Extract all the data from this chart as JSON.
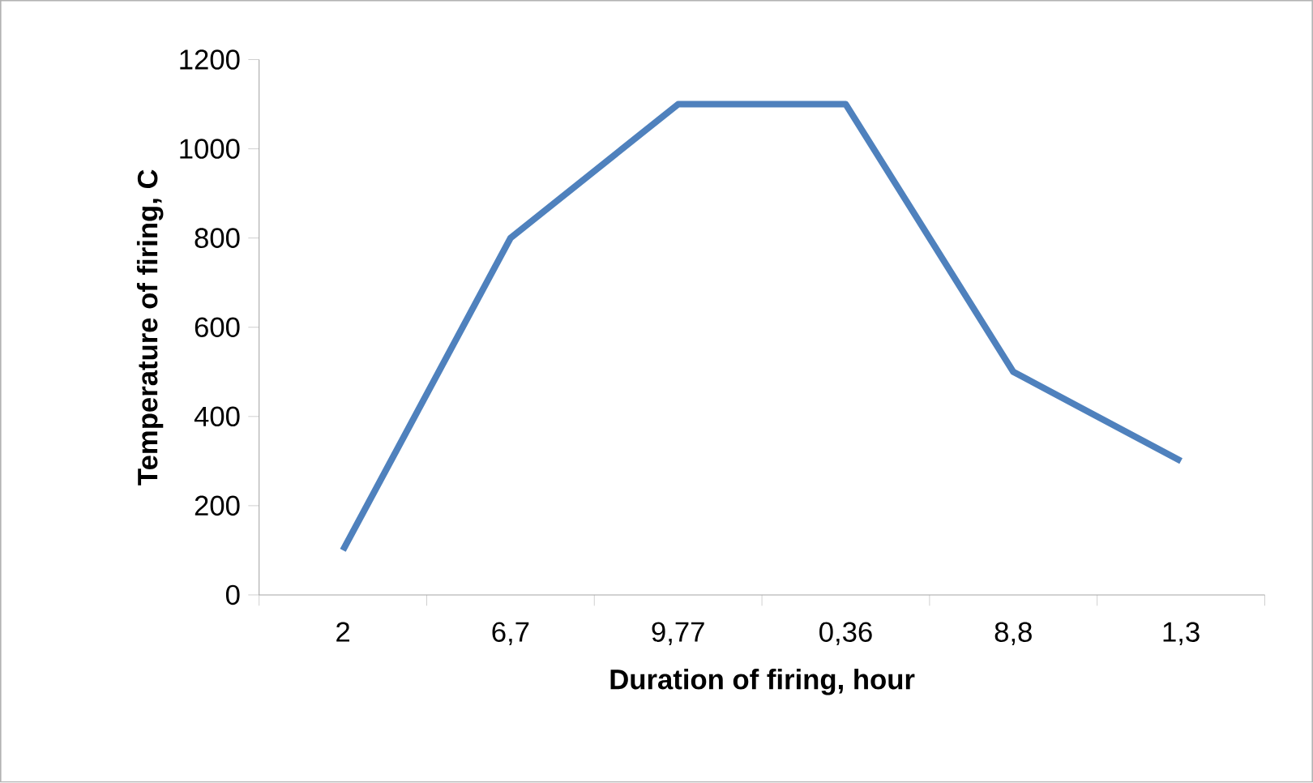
{
  "chart_data": {
    "type": "line",
    "xlabel": "Duration of firing, hour",
    "ylabel": "Temperature of firing, C",
    "categories": [
      "2",
      "6,7",
      "9,77",
      "0,36",
      "8,8",
      "1,3"
    ],
    "series": [
      {
        "color": "#4f81bd",
        "values": [
          100,
          800,
          1100,
          1100,
          500,
          300
        ]
      }
    ],
    "ylim": [
      0,
      1200
    ],
    "yticks": [
      0,
      200,
      400,
      600,
      800,
      1000,
      1200
    ]
  }
}
